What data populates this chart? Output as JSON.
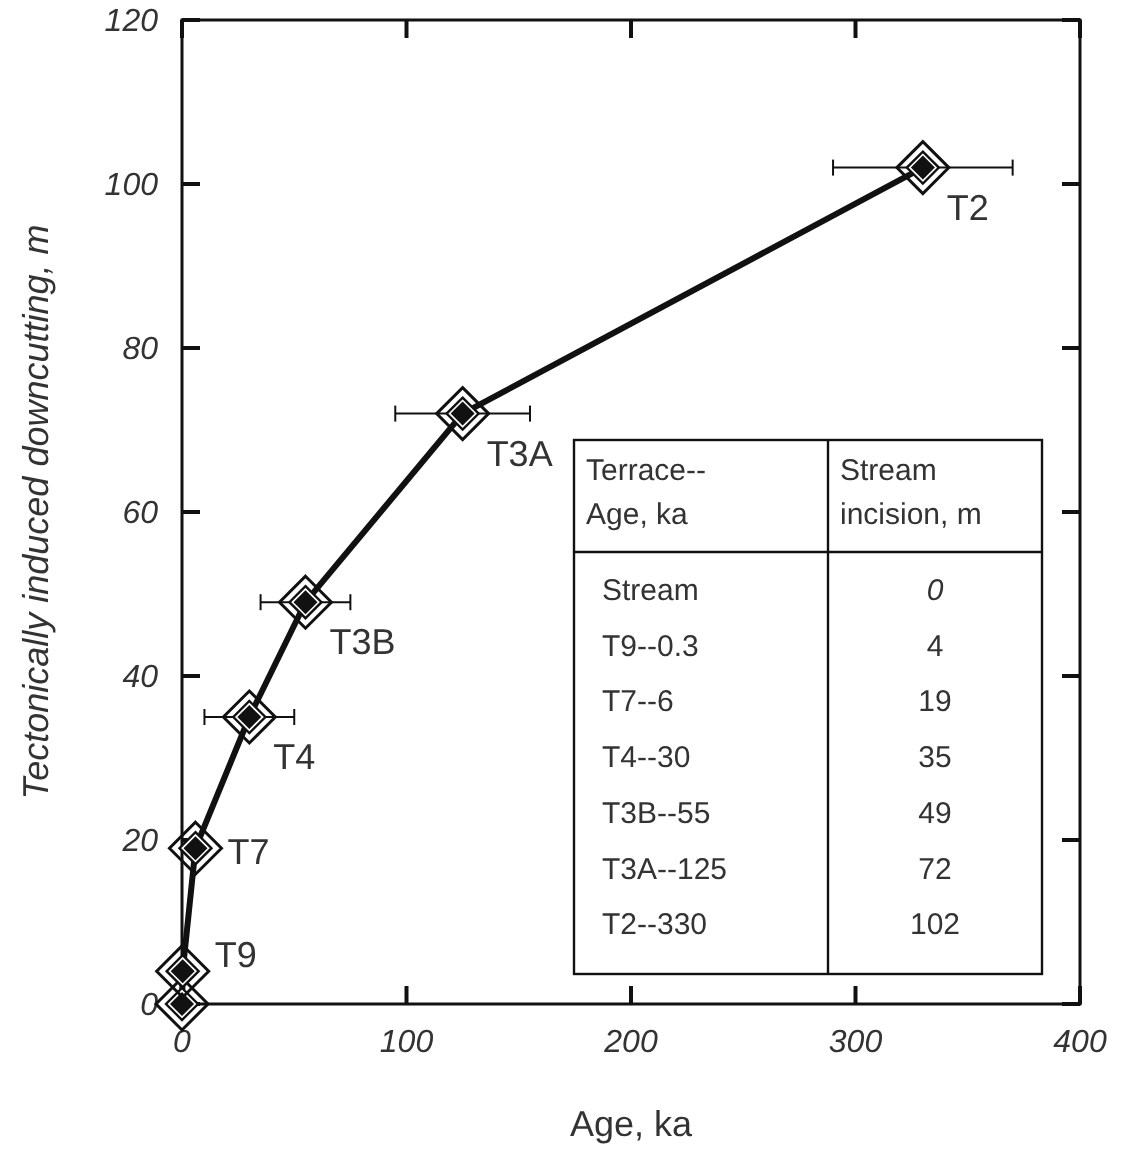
{
  "chart_data": {
    "type": "line",
    "xlabel": "Age, ka",
    "ylabel": "Tectonically induced downcutting, m",
    "x": [
      0,
      0.3,
      6,
      30,
      55,
      125,
      330
    ],
    "values": [
      0,
      4,
      19,
      35,
      49,
      72,
      102
    ],
    "xerrors": [
      null,
      1,
      3,
      20,
      20,
      30,
      40
    ],
    "color": "#111111",
    "marker": "diamond",
    "line_style": "solid",
    "xlim": [
      0,
      400
    ],
    "ylim": [
      0,
      120
    ],
    "xticks": [
      0,
      100,
      200,
      300,
      400
    ],
    "yticks": [
      0,
      20,
      40,
      60,
      80,
      100,
      120
    ],
    "grid": false,
    "annotations": [
      {
        "text": "T9",
        "x": 0.3,
        "y": 4
      },
      {
        "text": "T7",
        "x": 6,
        "y": 19
      },
      {
        "text": "T4",
        "x": 30,
        "y": 35
      },
      {
        "text": "T3B",
        "x": 55,
        "y": 49
      },
      {
        "text": "T3A",
        "x": 125,
        "y": 72
      },
      {
        "text": "T2",
        "x": 330,
        "y": 102
      },
      "Terrace--\nAge, ka",
      "Stream\nincision, m",
      "Stream",
      "0",
      "T9--0.3",
      "4",
      "T7--6",
      "19",
      "T4--30",
      "35",
      "T3B--55",
      "49",
      "T3A--125",
      "72",
      "T2--330",
      "102"
    ]
  }
}
